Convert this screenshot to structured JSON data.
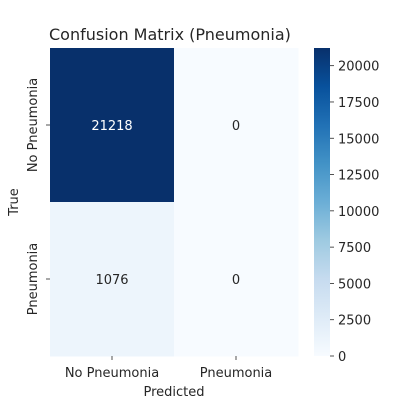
{
  "chart_data": {
    "type": "heatmap",
    "title": "Confusion Matrix (Pneumonia)",
    "xlabel": "Predicted",
    "ylabel": "True",
    "x_categories": [
      "No Pneumonia",
      "Pneumonia"
    ],
    "y_categories": [
      "No Pneumonia",
      "Pneumonia"
    ],
    "values": [
      [
        21218,
        0
      ],
      [
        1076,
        0
      ]
    ],
    "colormap": "Blues",
    "colorbar": {
      "min": 0,
      "max": 21218,
      "ticks": [
        0,
        2500,
        5000,
        7500,
        10000,
        12500,
        15000,
        17500,
        20000
      ]
    },
    "colors": {
      "low": "#f7fbff",
      "high": "#08306b",
      "text_on_dark": "#ffffff",
      "text_on_light": "#262626"
    }
  }
}
